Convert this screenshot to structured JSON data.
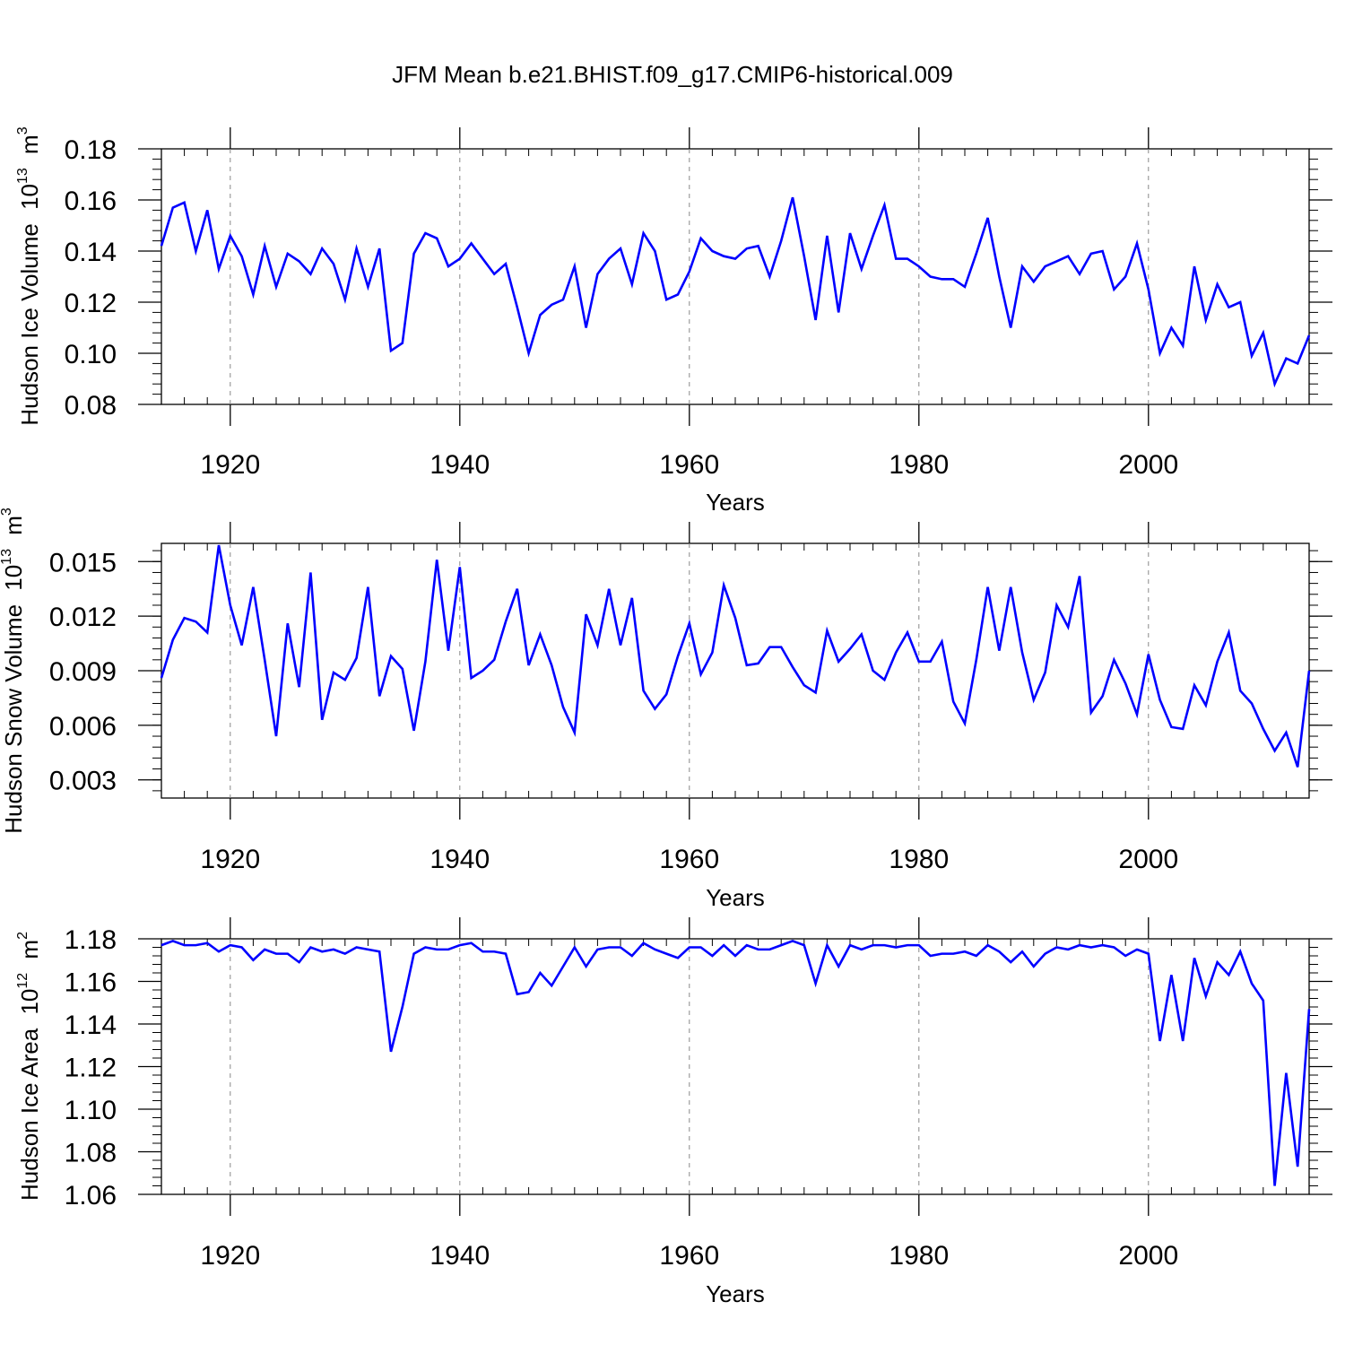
{
  "title": "JFM Mean b.e21.BHIST.f09_g17.CMIP6-historical.009",
  "chart_data": [
    {
      "type": "line",
      "ylabel": "Hudson Ice Volume",
      "yunit_base": "10",
      "yunit_exp": "13",
      "yunit_tail": "m",
      "yunit_tail_exp": "3",
      "xlabel": "Years",
      "xlim": [
        1914,
        2014
      ],
      "ylim": [
        0.08,
        0.18
      ],
      "yticks": [
        0.08,
        0.1,
        0.12,
        0.14,
        0.16,
        0.18
      ],
      "ytick_labels": [
        "0.08",
        "0.10",
        "0.12",
        "0.14",
        "0.16",
        "0.18"
      ],
      "xticks": [
        1920,
        1940,
        1960,
        1980,
        2000
      ],
      "xtick_labels": [
        "1920",
        "1940",
        "1960",
        "1980",
        "2000"
      ],
      "line_color": "#0000ff",
      "x_start": 1914,
      "values": [
        0.142,
        0.157,
        0.159,
        0.14,
        0.156,
        0.133,
        0.146,
        0.138,
        0.123,
        0.142,
        0.126,
        0.139,
        0.136,
        0.131,
        0.141,
        0.135,
        0.121,
        0.141,
        0.126,
        0.141,
        0.101,
        0.104,
        0.139,
        0.147,
        0.145,
        0.134,
        0.137,
        0.143,
        0.137,
        0.131,
        0.135,
        0.118,
        0.1,
        0.115,
        0.119,
        0.121,
        0.134,
        0.11,
        0.131,
        0.137,
        0.141,
        0.127,
        0.147,
        0.14,
        0.121,
        0.123,
        0.132,
        0.145,
        0.14,
        0.138,
        0.137,
        0.141,
        0.142,
        0.13,
        0.144,
        0.161,
        0.138,
        0.113,
        0.146,
        0.116,
        0.147,
        0.133,
        0.146,
        0.158,
        0.137,
        0.137,
        0.134,
        0.13,
        0.129,
        0.129,
        0.126,
        0.139,
        0.153,
        0.13,
        0.11,
        0.134,
        0.128,
        0.134,
        0.136,
        0.138,
        0.131,
        0.139,
        0.14,
        0.125,
        0.13,
        0.143,
        0.125,
        0.1,
        0.11,
        0.103,
        0.134,
        0.113,
        0.127,
        0.118,
        0.12,
        0.099,
        0.108,
        0.088,
        0.098,
        0.096,
        0.107
      ]
    },
    {
      "type": "line",
      "ylabel": "Hudson Snow Volume",
      "yunit_base": "10",
      "yunit_exp": "13",
      "yunit_tail": "m",
      "yunit_tail_exp": "3",
      "xlabel": "Years",
      "xlim": [
        1914,
        2014
      ],
      "ylim": [
        0.002,
        0.016
      ],
      "yticks": [
        0.003,
        0.006,
        0.009,
        0.012,
        0.015
      ],
      "ytick_labels": [
        "0.003",
        "0.006",
        "0.009",
        "0.012",
        "0.015"
      ],
      "xticks": [
        1920,
        1940,
        1960,
        1980,
        2000
      ],
      "xtick_labels": [
        "1920",
        "1940",
        "1960",
        "1980",
        "2000"
      ],
      "line_color": "#0000ff",
      "x_start": 1914,
      "values": [
        0.0086,
        0.0107,
        0.0119,
        0.0117,
        0.0111,
        0.0159,
        0.0126,
        0.0104,
        0.0136,
        0.0096,
        0.0054,
        0.0116,
        0.0081,
        0.0144,
        0.0063,
        0.0089,
        0.0085,
        0.0097,
        0.0136,
        0.0076,
        0.0098,
        0.0091,
        0.0057,
        0.0095,
        0.0151,
        0.0101,
        0.0147,
        0.0086,
        0.009,
        0.0096,
        0.0117,
        0.0135,
        0.0093,
        0.011,
        0.0093,
        0.007,
        0.0056,
        0.0121,
        0.0104,
        0.0135,
        0.0104,
        0.013,
        0.0079,
        0.0069,
        0.0077,
        0.0098,
        0.0116,
        0.0088,
        0.01,
        0.0137,
        0.0119,
        0.0093,
        0.0094,
        0.0103,
        0.0103,
        0.0092,
        0.0082,
        0.0078,
        0.0112,
        0.0095,
        0.0102,
        0.011,
        0.009,
        0.0085,
        0.01,
        0.0111,
        0.0095,
        0.0095,
        0.0106,
        0.0073,
        0.0061,
        0.0096,
        0.0136,
        0.0101,
        0.0136,
        0.01,
        0.0074,
        0.0089,
        0.0126,
        0.0114,
        0.0142,
        0.0067,
        0.0076,
        0.0096,
        0.0083,
        0.0066,
        0.0099,
        0.0074,
        0.0059,
        0.0058,
        0.0082,
        0.0071,
        0.0095,
        0.0111,
        0.0079,
        0.0072,
        0.0058,
        0.0046,
        0.0056,
        0.0037,
        0.009
      ]
    },
    {
      "type": "line",
      "ylabel": "Hudson Ice Area",
      "yunit_base": "10",
      "yunit_exp": "12",
      "yunit_tail": "m",
      "yunit_tail_exp": "2",
      "xlabel": "Years",
      "xlim": [
        1914,
        2014
      ],
      "ylim": [
        1.06,
        1.18
      ],
      "yticks": [
        1.06,
        1.08,
        1.1,
        1.12,
        1.14,
        1.16,
        1.18
      ],
      "ytick_labels": [
        "1.06",
        "1.08",
        "1.10",
        "1.12",
        "1.14",
        "1.16",
        "1.18"
      ],
      "xticks": [
        1920,
        1940,
        1960,
        1980,
        2000
      ],
      "xtick_labels": [
        "1920",
        "1940",
        "1960",
        "1980",
        "2000"
      ],
      "line_color": "#0000ff",
      "x_start": 1914,
      "values": [
        1.177,
        1.179,
        1.177,
        1.177,
        1.178,
        1.174,
        1.177,
        1.176,
        1.17,
        1.175,
        1.173,
        1.173,
        1.169,
        1.176,
        1.174,
        1.175,
        1.173,
        1.176,
        1.175,
        1.174,
        1.127,
        1.148,
        1.173,
        1.176,
        1.175,
        1.175,
        1.177,
        1.178,
        1.174,
        1.174,
        1.173,
        1.154,
        1.155,
        1.164,
        1.158,
        1.167,
        1.176,
        1.167,
        1.175,
        1.176,
        1.176,
        1.172,
        1.178,
        1.175,
        1.173,
        1.171,
        1.176,
        1.176,
        1.172,
        1.177,
        1.172,
        1.177,
        1.175,
        1.175,
        1.177,
        1.179,
        1.177,
        1.159,
        1.177,
        1.167,
        1.177,
        1.175,
        1.177,
        1.177,
        1.176,
        1.177,
        1.177,
        1.172,
        1.173,
        1.173,
        1.174,
        1.172,
        1.177,
        1.174,
        1.169,
        1.174,
        1.167,
        1.173,
        1.176,
        1.175,
        1.177,
        1.176,
        1.177,
        1.176,
        1.172,
        1.175,
        1.173,
        1.132,
        1.163,
        1.132,
        1.171,
        1.153,
        1.169,
        1.163,
        1.174,
        1.159,
        1.151,
        1.064,
        1.117,
        1.073,
        1.147
      ]
    }
  ]
}
